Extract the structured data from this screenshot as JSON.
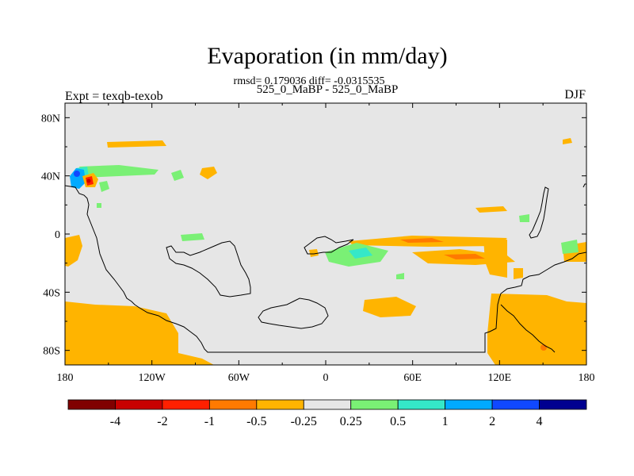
{
  "title": "Evaporation (in mm/day)",
  "stats_line": "rmsd= 0.179036 diff= -0.0315535",
  "period_line": "525_0_MaBP - 525_0_MaBP",
  "experiment_label": "Expt = texqb-texob",
  "season_label": "DJF",
  "colors": {
    "background_field": "#e6e6e6",
    "coastline": "#000000",
    "bins": [
      "#800000",
      "#c80000",
      "#ff2000",
      "#ff7a00",
      "#ffb400",
      "#e6e6e6",
      "#7af075",
      "#35e8c8",
      "#00aaff",
      "#1048ff",
      "#000090"
    ]
  },
  "chart_data": {
    "type": "heatmap",
    "projection": "cylindrical-equidistant",
    "y_ticks": [
      "80N",
      "40N",
      "0",
      "40S",
      "80S"
    ],
    "x_ticks": [
      "180",
      "120W",
      "60W",
      "0",
      "60E",
      "120E",
      "180"
    ],
    "lon_range": [
      -180,
      180
    ],
    "lat_range": [
      -90,
      90
    ],
    "colorbar": {
      "labels": [
        "-4",
        "-2",
        "-1",
        "-0.5",
        "-0.25",
        "0.25",
        "0.5",
        "1",
        "2",
        "4"
      ],
      "levels": [
        -4,
        -2,
        -1,
        -0.5,
        -0.25,
        0.25,
        0.5,
        1,
        2,
        4
      ]
    },
    "regions": [
      {
        "name": "western-pacific-tropical-band",
        "sign": "negative",
        "level": -0.25
      },
      {
        "name": "south-pacific-convergence-band",
        "sign": "negative",
        "level": -0.5
      },
      {
        "name": "high-latitude-northwest-anomaly",
        "sign": "mixed",
        "level": 2
      },
      {
        "name": "southern-ocean-band",
        "sign": "negative",
        "level": -0.25
      },
      {
        "name": "equatorial-atlantic-patch",
        "sign": "positive",
        "level": 1
      }
    ]
  }
}
